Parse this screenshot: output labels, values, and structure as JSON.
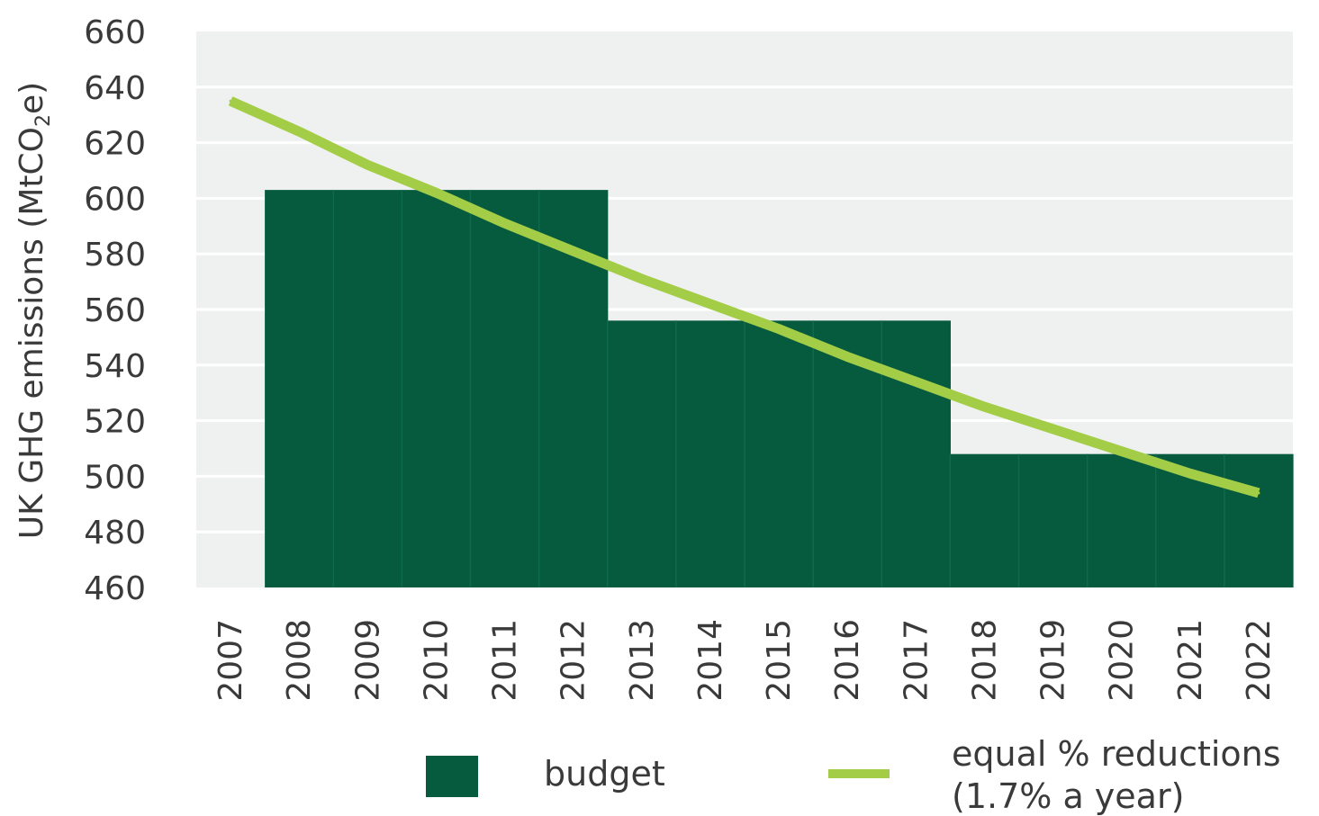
{
  "chart_data": {
    "type": "bar",
    "ylabel_parts": [
      "UK GHG emissions (MtCO",
      "2",
      "e)"
    ],
    "ylim": [
      460,
      660
    ],
    "y_ticks": [
      "460",
      "480",
      "500",
      "520",
      "540",
      "560",
      "580",
      "600",
      "620",
      "640",
      "660"
    ],
    "categories": [
      "2007",
      "2008",
      "2009",
      "2010",
      "2011",
      "2012",
      "2013",
      "2014",
      "2015",
      "2016",
      "2017",
      "2018",
      "2019",
      "2020",
      "2021",
      "2022"
    ],
    "grid": true,
    "series": [
      {
        "name": "budget",
        "values": [
          null,
          603,
          603,
          603,
          603,
          603,
          556,
          556,
          556,
          556,
          556,
          508,
          508,
          508,
          508,
          508
        ]
      },
      {
        "name": "equal % reductions (1.7% a year)",
        "values": [
          635,
          624,
          612,
          602,
          591,
          581,
          571,
          562,
          553,
          543,
          534,
          525,
          517,
          509,
          501,
          494
        ]
      }
    ],
    "legend": {
      "position": "bottom",
      "budget_label": "budget",
      "line_label_1": "equal % reductions",
      "line_label_2": "(1.7% a year)"
    },
    "colors": {
      "budget": "#065a3e",
      "line": "#a3cd46",
      "plot_bg": "#eff1f0",
      "grid": "#ffffff",
      "text": "#3a3a3a"
    }
  }
}
